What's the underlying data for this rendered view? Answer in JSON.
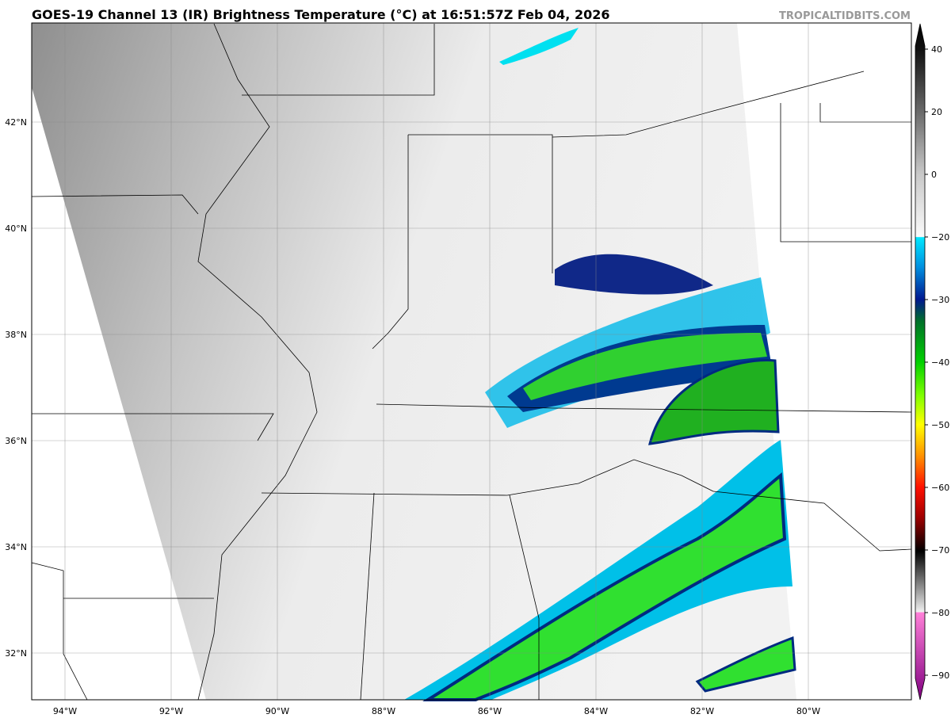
{
  "header": {
    "title": "GOES-19 Channel 13 (IR) Brightness Temperature (°C) at 16:51:57Z Feb 04, 2026",
    "watermark": "TROPICALTIDBITS.COM"
  },
  "map": {
    "latitude_labels": [
      "42°N",
      "40°N",
      "38°N",
      "36°N",
      "34°N",
      "32°N"
    ],
    "longitude_labels": [
      "94°W",
      "92°W",
      "90°W",
      "88°W",
      "86°W",
      "84°W",
      "82°W",
      "80°W"
    ]
  },
  "colorbar": {
    "ticks": [
      {
        "value": 40,
        "label": "40"
      },
      {
        "value": 20,
        "label": "20"
      },
      {
        "value": 0,
        "label": "0"
      },
      {
        "value": -20,
        "label": "−20"
      },
      {
        "value": -30,
        "label": "−30"
      },
      {
        "value": -40,
        "label": "−40"
      },
      {
        "value": -50,
        "label": "−50"
      },
      {
        "value": -60,
        "label": "−60"
      },
      {
        "value": -70,
        "label": "−70"
      },
      {
        "value": -80,
        "label": "−80"
      },
      {
        "value": -90,
        "label": "−90"
      }
    ]
  }
}
